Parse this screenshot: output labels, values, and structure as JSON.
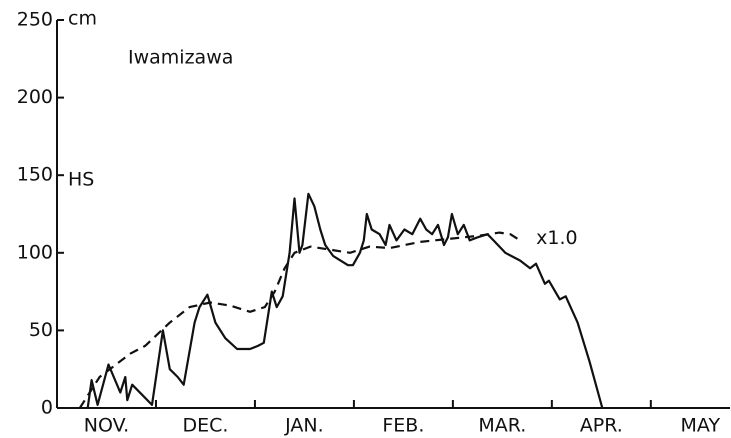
{
  "chart_data": {
    "type": "line",
    "title": "Iwamizawa",
    "y_label": "HS",
    "y_unit": "cm",
    "categories": [
      "NOV.",
      "DEC.",
      "JAN.",
      "FEB.",
      "MAR.",
      "APR.",
      "MAY"
    ],
    "xlim": [
      0,
      6.8
    ],
    "xticks": [
      1,
      2,
      3,
      4,
      5,
      6
    ],
    "ylim": [
      0,
      250
    ],
    "yticks": [
      0,
      50,
      100,
      150,
      200,
      250
    ],
    "grid": false,
    "series": [
      {
        "color": "#111111",
        "dash": false,
        "x": [
          0.31,
          0.35,
          0.41,
          0.52,
          0.64,
          0.69,
          0.71,
          0.76,
          0.96,
          1.07,
          1.14,
          1.22,
          1.28,
          1.39,
          1.44,
          1.52,
          1.6,
          1.7,
          1.82,
          1.95,
          2.03,
          2.09,
          2.17,
          2.22,
          2.28,
          2.35,
          2.4,
          2.45,
          2.48,
          2.54,
          2.6,
          2.66,
          2.71,
          2.79,
          2.94,
          2.99,
          3.06,
          3.1,
          3.13,
          3.18,
          3.26,
          3.32,
          3.36,
          3.43,
          3.51,
          3.59,
          3.67,
          3.73,
          3.79,
          3.85,
          3.91,
          3.95,
          3.99,
          4.05,
          4.11,
          4.17,
          4.25,
          4.35,
          4.41,
          4.53,
          4.68,
          4.78,
          4.84,
          4.93,
          4.97,
          5.08,
          5.14,
          5.26,
          5.38,
          5.51
        ],
        "values": [
          0,
          18,
          2,
          28,
          10,
          20,
          5,
          15,
          2,
          50,
          25,
          20,
          15,
          55,
          65,
          73,
          55,
          45,
          38,
          38,
          40,
          42,
          75,
          65,
          72,
          100,
          135,
          100,
          105,
          138,
          130,
          115,
          105,
          98,
          92,
          92,
          100,
          108,
          125,
          115,
          112,
          105,
          118,
          108,
          115,
          112,
          122,
          115,
          112,
          118,
          105,
          110,
          125,
          112,
          118,
          108,
          110,
          112,
          108,
          100,
          95,
          90,
          93,
          80,
          82,
          70,
          72,
          55,
          30,
          0
        ]
      },
      {
        "name": "x1.0",
        "color": "#111111",
        "dash": true,
        "x": [
          0.23,
          0.43,
          0.74,
          0.89,
          1.14,
          1.34,
          1.55,
          1.75,
          1.95,
          2.1,
          2.2,
          2.3,
          2.4,
          2.56,
          2.76,
          2.96,
          3.16,
          3.36,
          3.67,
          3.97,
          4.27,
          4.47,
          4.58,
          4.68
        ],
        "values": [
          0,
          20,
          35,
          40,
          55,
          65,
          68,
          66,
          62,
          65,
          75,
          90,
          100,
          104,
          102,
          100,
          104,
          103,
          107,
          109,
          111,
          113,
          112,
          108
        ]
      }
    ]
  }
}
